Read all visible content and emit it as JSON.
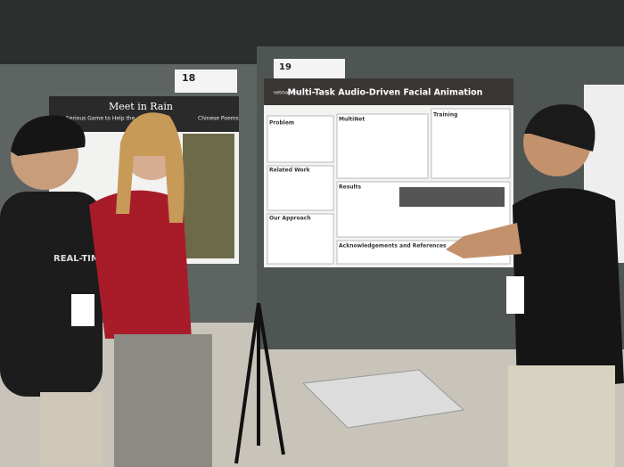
{
  "scene": {
    "left_poster": {
      "number": "18",
      "title": "Meet in Rain",
      "subtitle": "A Serious Game to Help the",
      "subtitle_end": "Chinese Poems"
    },
    "right_poster": {
      "number": "19",
      "title": "Multi-Task Audio-Driven Facial Animation",
      "logo": "netmarble",
      "sections": [
        "Problem",
        "MultiNet",
        "Training",
        "Related Work",
        "Results",
        "Our Approach",
        "Acknowledgements and References"
      ]
    },
    "shirt_text": "REAL-TIME"
  }
}
